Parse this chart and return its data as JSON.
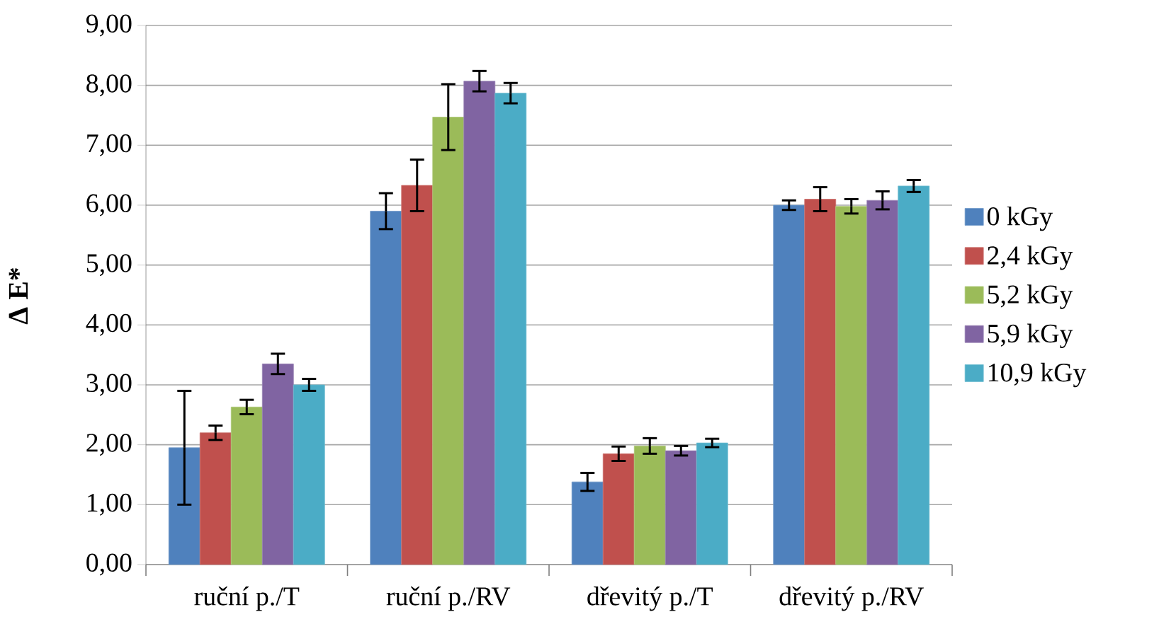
{
  "chart_data": {
    "type": "bar",
    "ylabel": "Δ E*",
    "categories": [
      "ruční p./T",
      "ruční p./RV",
      "dřevitý p./T",
      "dřevitý p./RV"
    ],
    "ylim": [
      0,
      9
    ],
    "yticks": [
      {
        "value": 0,
        "label": "0,00"
      },
      {
        "value": 1,
        "label": "1,00"
      },
      {
        "value": 2,
        "label": "2,00"
      },
      {
        "value": 3,
        "label": "3,00"
      },
      {
        "value": 4,
        "label": "4,00"
      },
      {
        "value": 5,
        "label": "5,00"
      },
      {
        "value": 6,
        "label": "6,00"
      },
      {
        "value": 7,
        "label": "7,00"
      },
      {
        "value": 8,
        "label": "8,00"
      },
      {
        "value": 9,
        "label": "9,00"
      }
    ],
    "grid": "y",
    "legend": "right",
    "series": [
      {
        "name": "0 kGy",
        "color": "#4f81bd",
        "values": [
          1.95,
          5.9,
          1.38,
          6.0
        ],
        "errors": [
          0.95,
          0.3,
          0.15,
          0.08
        ]
      },
      {
        "name": "2,4 kGy",
        "color": "#c0504d",
        "values": [
          2.2,
          6.33,
          1.85,
          6.1
        ],
        "errors": [
          0.12,
          0.43,
          0.12,
          0.2
        ]
      },
      {
        "name": "5,2 kGy",
        "color": "#9bbb59",
        "values": [
          2.63,
          7.47,
          1.98,
          5.98
        ],
        "errors": [
          0.12,
          0.55,
          0.13,
          0.12
        ]
      },
      {
        "name": "5,9 kGy",
        "color": "#8064a2",
        "values": [
          3.35,
          8.07,
          1.9,
          6.08
        ],
        "errors": [
          0.17,
          0.17,
          0.08,
          0.15
        ]
      },
      {
        "name": "10,9 kGy",
        "color": "#4bacc6",
        "values": [
          3.0,
          7.87,
          2.03,
          6.32
        ],
        "errors": [
          0.1,
          0.17,
          0.07,
          0.1
        ]
      }
    ]
  }
}
